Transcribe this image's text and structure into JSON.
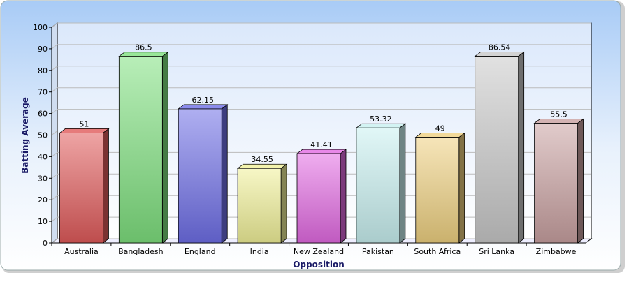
{
  "chart_data": {
    "type": "bar3d",
    "x_label": "Opposition",
    "y_label": "Batting Average",
    "categories": [
      "Australia",
      "Bangladesh",
      "England",
      "India",
      "New Zealand",
      "Pakistan",
      "South Africa",
      "Sri Lanka",
      "Zimbabwe"
    ],
    "values": [
      51,
      86.5,
      62.15,
      34.55,
      41.41,
      53.32,
      49,
      86.54,
      55.5
    ],
    "colors": [
      "#e05a5a",
      "#7ee07e",
      "#6e6ee6",
      "#f0f098",
      "#e26ae2",
      "#c8f0f0",
      "#eed080",
      "#c8c8c8",
      "#c8a0a0"
    ],
    "ylim": [
      0,
      100
    ],
    "yticks": [
      0,
      10,
      20,
      30,
      40,
      50,
      60,
      70,
      80,
      90,
      100
    ],
    "grid": true
  }
}
